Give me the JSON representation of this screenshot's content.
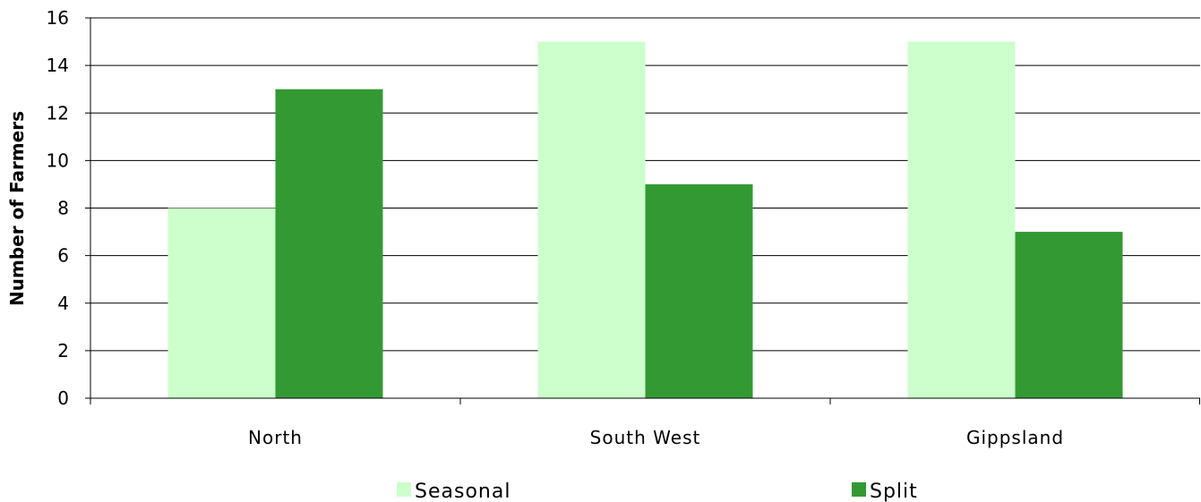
{
  "chart_data": {
    "type": "bar",
    "categories": [
      "North",
      "South West",
      "Gippsland"
    ],
    "series": [
      {
        "name": "Seasonal",
        "values": [
          8,
          15,
          15
        ],
        "color": "#ccffcc"
      },
      {
        "name": "Split",
        "values": [
          13,
          9,
          7
        ],
        "color": "#339933"
      }
    ],
    "title": "",
    "xlabel": "",
    "ylabel": "Number of Farmers",
    "ylim": [
      0,
      16
    ],
    "yticks": [
      0,
      2,
      4,
      6,
      8,
      10,
      12,
      14,
      16
    ],
    "grid": true,
    "legend_position": "bottom"
  }
}
